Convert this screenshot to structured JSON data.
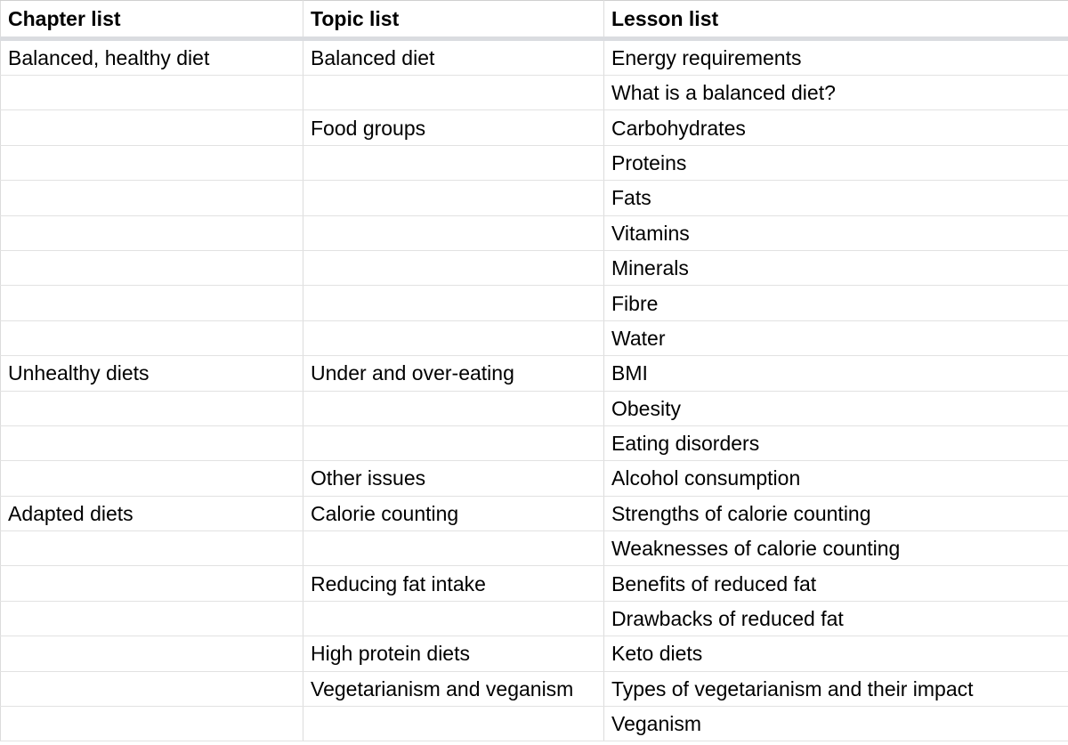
{
  "table": {
    "headers": [
      "Chapter list",
      "Topic list",
      "Lesson list"
    ],
    "rows": [
      [
        "Balanced, healthy diet",
        "Balanced diet",
        "Energy requirements"
      ],
      [
        "",
        "",
        "What is a balanced diet?"
      ],
      [
        "",
        "Food groups",
        "Carbohydrates"
      ],
      [
        "",
        "",
        "Proteins"
      ],
      [
        "",
        "",
        "Fats"
      ],
      [
        "",
        "",
        "Vitamins"
      ],
      [
        "",
        "",
        "Minerals"
      ],
      [
        "",
        "",
        "Fibre"
      ],
      [
        "",
        "",
        "Water"
      ],
      [
        "Unhealthy diets",
        "Under and over-eating",
        "BMI"
      ],
      [
        "",
        "",
        "Obesity"
      ],
      [
        "",
        "",
        "Eating disorders"
      ],
      [
        "",
        "Other issues",
        "Alcohol consumption"
      ],
      [
        "Adapted diets",
        "Calorie counting",
        "Strengths of calorie counting"
      ],
      [
        "",
        "",
        "Weaknesses of calorie counting"
      ],
      [
        "",
        "Reducing fat intake",
        "Benefits of reduced fat"
      ],
      [
        "",
        "",
        "Drawbacks of reduced fat"
      ],
      [
        "",
        "High protein diets",
        "Keto diets"
      ],
      [
        "",
        "Vegetarianism and veganism",
        "Types of vegetarianism and their impact"
      ],
      [
        "",
        "",
        "Veganism"
      ]
    ]
  }
}
